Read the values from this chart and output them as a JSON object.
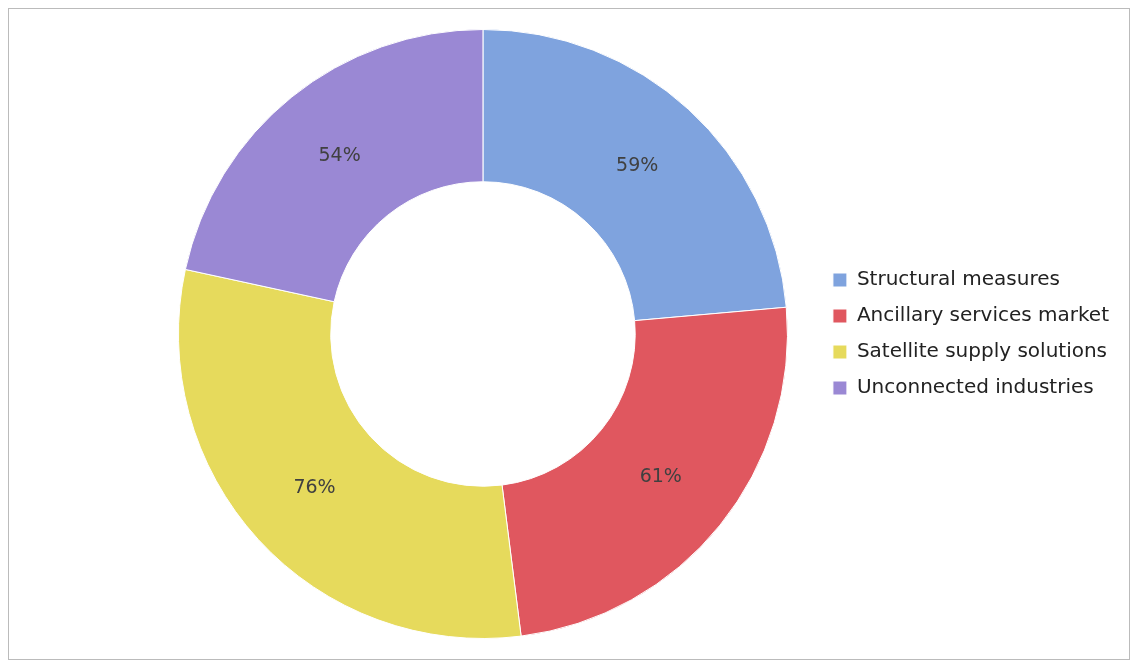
{
  "chart_data": {
    "type": "donut",
    "categories": [
      "Structural measures",
      "Ancillary services market",
      "Satellite supply solutions",
      "Unconnected industries"
    ],
    "values": [
      59,
      61,
      76,
      54
    ],
    "colors": [
      "#7fa3de",
      "#e0575f",
      "#e6da5c",
      "#9a88d4"
    ],
    "value_labels": [
      "59%",
      "61%",
      "76%",
      "54%"
    ],
    "legend": "right"
  }
}
